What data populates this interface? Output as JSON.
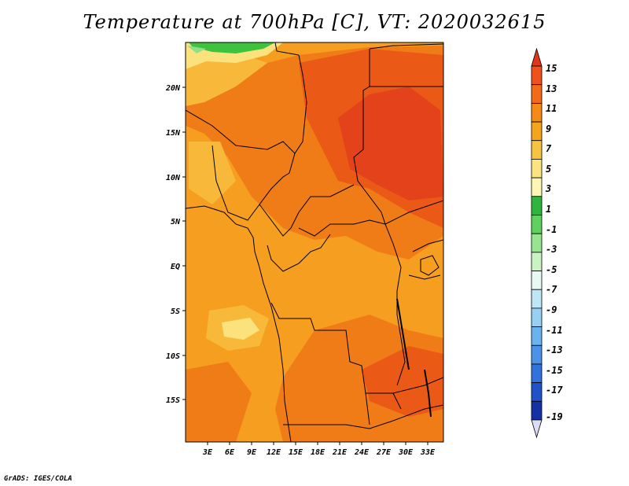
{
  "title": "Temperature at 700hPa [C], VT: 2020032615",
  "credit": "GrADS: IGES/COLA",
  "axes": {
    "lon_ticks": [
      "3E",
      "6E",
      "9E",
      "12E",
      "15E",
      "18E",
      "21E",
      "24E",
      "27E",
      "30E",
      "33E"
    ],
    "lat_ticks": [
      "20N",
      "15N",
      "10N",
      "5N",
      "EQ",
      "5S",
      "10S",
      "15S"
    ]
  },
  "colorbar": {
    "labels": [
      "15",
      "13",
      "11",
      "9",
      "7",
      "5",
      "3",
      "1",
      "-1",
      "-3",
      "-5",
      "-7",
      "-9",
      "-11",
      "-13",
      "-15",
      "-17",
      "-19"
    ],
    "colors": [
      "#e0371c",
      "#f0501a",
      "#f56a16",
      "#f58a16",
      "#f5a41e",
      "#f8c440",
      "#fbe47f",
      "#fdf6b5",
      "#2fb43e",
      "#5fd15d",
      "#97e58f",
      "#c9f3c2",
      "#e8f9f3",
      "#bfe6f7",
      "#96d1f5",
      "#6ab3f0",
      "#4a93e8",
      "#3172dd",
      "#2052c8",
      "#1432a5",
      "#081d7c"
    ]
  },
  "field_colors": {
    "cold_green": "#3fc33f",
    "light_green": "#8fe08a",
    "pale_yellow": "#fbe27c",
    "light_orange": "#f8b83a",
    "orange": "#f59e1f",
    "dark_orange": "#f07c17",
    "red_orange": "#ea5a16",
    "red": "#e4421a"
  }
}
